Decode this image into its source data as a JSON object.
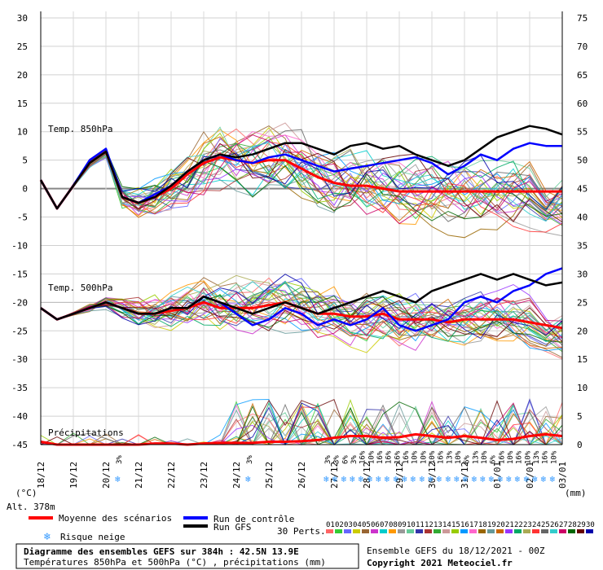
{
  "chart_data": {
    "type": "line",
    "title": "Diagramme des ensembles GEFS sur 384h : 42.5N 13.9E",
    "subtitle": "Températures 850hPa et 500hPa (°C) , précipitations (mm)",
    "run_info": "Ensemble GEFS du 18/12/2021 - 00Z",
    "copyright": "Copyright 2021 Meteociel.fr",
    "altitude": "Alt. 378m",
    "left_unit": "(°C)",
    "right_unit": "(mm)",
    "left_axis": {
      "range": [
        -45,
        30
      ],
      "ticks": [
        30,
        25,
        20,
        15,
        10,
        5,
        0,
        -5,
        -10,
        -15,
        -20,
        -25,
        -30,
        -35,
        -40,
        -45
      ]
    },
    "right_axis": {
      "range": [
        0,
        75
      ],
      "ticks": [
        75,
        70,
        65,
        60,
        55,
        50,
        45,
        40,
        35,
        30,
        25,
        20,
        15,
        10,
        5,
        0
      ]
    },
    "x_labels": [
      "18/12",
      "19/12",
      "20/12",
      "21/12",
      "22/12",
      "23/12",
      "24/12",
      "25/12",
      "26/12",
      "27/12",
      "28/12",
      "29/12",
      "30/12",
      "31/12",
      "01/01",
      "02/01",
      "03/01"
    ],
    "panel_labels": {
      "t850": "Temp. 850hPa",
      "t500": "Temp. 500hPa",
      "precip": "Précipitations"
    },
    "series": [
      {
        "name": "Moyenne des scénarios (850hPa)",
        "color": "#ff0000",
        "values": [
          1.5,
          -3.5,
          0.5,
          4.5,
          6.5,
          -1.5,
          -2.5,
          -1.5,
          0,
          2.5,
          4.5,
          5.5,
          5,
          4.5,
          5,
          5,
          3.5,
          2,
          1,
          0.5,
          0.5,
          0,
          -0.5,
          -0.5,
          -0.5,
          -0.5,
          -0.5,
          -0.5,
          -0.5,
          -0.5,
          -0.5,
          -0.5,
          -0.5
        ]
      },
      {
        "name": "Run de contrôle (850hPa)",
        "color": "#0000ff",
        "values": [
          1.5,
          -3.5,
          0.5,
          5,
          7,
          -1.5,
          -2.5,
          -1,
          0.5,
          3,
          5,
          6,
          5,
          4.5,
          5.5,
          6,
          5,
          4,
          3,
          3.5,
          4,
          4.5,
          5,
          5.5,
          4.5,
          2.5,
          4,
          6,
          5,
          7,
          8,
          7.5,
          7.5
        ]
      },
      {
        "name": "Run GFS (850hPa)",
        "color": "#000000",
        "values": [
          1.5,
          -3.5,
          0.5,
          4.5,
          6.5,
          -1.5,
          -2.5,
          -1.5,
          0.5,
          3,
          5,
          6,
          5.5,
          6,
          7,
          8,
          8,
          7,
          6,
          7.5,
          8,
          7,
          7.5,
          6,
          5,
          4,
          5,
          7,
          9,
          10,
          11,
          10.5,
          9.5
        ]
      },
      {
        "name": "Moyenne des scénarios (500hPa)",
        "color": "#ff0000",
        "values": [
          -21,
          -23,
          -22,
          -21,
          -20,
          -21,
          -22,
          -22,
          -21.5,
          -21,
          -20,
          -21,
          -21,
          -21,
          -20.5,
          -20,
          -21,
          -22,
          -22,
          -22.5,
          -22.5,
          -22,
          -23,
          -23,
          -23,
          -23.5,
          -23,
          -23,
          -23,
          -23,
          -23.5,
          -24,
          -24.5
        ]
      },
      {
        "name": "Run de contrôle (500hPa)",
        "color": "#0000ff",
        "values": [
          -21,
          -23,
          -22,
          -21,
          -20,
          -21,
          -22,
          -22,
          -21,
          -21,
          -19,
          -20,
          -22,
          -24,
          -23,
          -21,
          -22,
          -24,
          -23,
          -24,
          -23,
          -21,
          -24,
          -25,
          -24,
          -23,
          -20,
          -19,
          -20,
          -18,
          -17,
          -15,
          -14
        ]
      },
      {
        "name": "Run GFS (500hPa)",
        "color": "#000000",
        "values": [
          -21,
          -23,
          -22,
          -21,
          -20,
          -21,
          -22,
          -22,
          -21,
          -21,
          -19,
          -20,
          -21,
          -22,
          -21,
          -20,
          -21,
          -22,
          -21,
          -20,
          -19,
          -18,
          -19,
          -20,
          -18,
          -17,
          -16,
          -15,
          -16,
          -15,
          -16,
          -17,
          -16.5
        ]
      },
      {
        "name": "Moyenne des scénarios (précipitations)",
        "color": "#ff0000",
        "values": [
          0.5,
          0,
          0,
          0,
          0,
          0,
          0,
          0.2,
          0.2,
          0,
          0.2,
          0.3,
          0.3,
          0.3,
          0.5,
          0.5,
          0.6,
          0.8,
          1.2,
          1.5,
          1.5,
          1.2,
          1.3,
          1.8,
          1.5,
          1.2,
          1.5,
          1.2,
          0.8,
          1,
          1.5,
          1.8,
          1.5
        ]
      }
    ],
    "snow_risk_columns": [
      {
        "label": "3%",
        "slot": 3
      },
      {
        "label": "3%",
        "slot": 8
      },
      {
        "label": "3%",
        "slot": 11
      },
      {
        "label": "3%",
        "slot": 11.33
      },
      {
        "label": "6%",
        "slot": 11.67
      },
      {
        "label": "3%",
        "slot": 12
      },
      {
        "label": "16%",
        "slot": 12.33
      },
      {
        "label": "10%",
        "slot": 12.67
      },
      {
        "label": "16%",
        "slot": 13
      },
      {
        "label": "16%",
        "slot": 13.33
      },
      {
        "label": "16%",
        "slot": 13.67
      },
      {
        "label": "16%",
        "slot": 14
      },
      {
        "label": "10%",
        "slot": 14.33
      },
      {
        "label": "10%",
        "slot": 14.67
      },
      {
        "label": "10%",
        "slot": 15
      },
      {
        "label": "16%",
        "slot": 15.33
      },
      {
        "label": "13%",
        "slot": 15.67
      },
      {
        "label": "10%",
        "slot": 16
      },
      {
        "label": "6%",
        "slot": 16.33
      },
      {
        "label": "13%",
        "slot": 16.67
      },
      {
        "label": "10%",
        "slot": 17
      },
      {
        "label": "6%",
        "slot": 17.33
      },
      {
        "label": "16%",
        "slot": 17.67
      },
      {
        "label": "10%",
        "slot": 18
      },
      {
        "label": "16%",
        "slot": 18.33
      },
      {
        "label": "10%",
        "slot": 18.67
      },
      {
        "label": "13%",
        "slot": 19
      },
      {
        "label": "16%",
        "slot": 19.33
      },
      {
        "label": "10%",
        "slot": 19.67
      }
    ],
    "legend": {
      "mean": "Moyenne des scénarios",
      "control": "Run de contrôle",
      "gfs": "Run GFS",
      "snow": "Risque neige",
      "perts_label": "30 Perts.",
      "perts": [
        "01",
        "02",
        "03",
        "04",
        "05",
        "06",
        "07",
        "08",
        "09",
        "10",
        "11",
        "12",
        "13",
        "14",
        "15",
        "16",
        "17",
        "18",
        "19",
        "20",
        "21",
        "22",
        "23",
        "24",
        "25",
        "26",
        "27",
        "28",
        "29",
        "30"
      ],
      "pert_colors": [
        "#ff6666",
        "#33cc33",
        "#6666ff",
        "#cccc00",
        "#996633",
        "#cc33cc",
        "#00cccc",
        "#ff9900",
        "#999999",
        "#66cc99",
        "#3333aa",
        "#aa3333",
        "#33aa33",
        "#cc9999",
        "#99cc00",
        "#0099ff",
        "#ff66cc",
        "#996600",
        "#669999",
        "#cc6600",
        "#9933ff",
        "#00aa66",
        "#aaaa55",
        "#ff3333",
        "#666666",
        "#33cccc",
        "#cc0066",
        "#006600",
        "#660000",
        "#0000aa"
      ]
    }
  }
}
